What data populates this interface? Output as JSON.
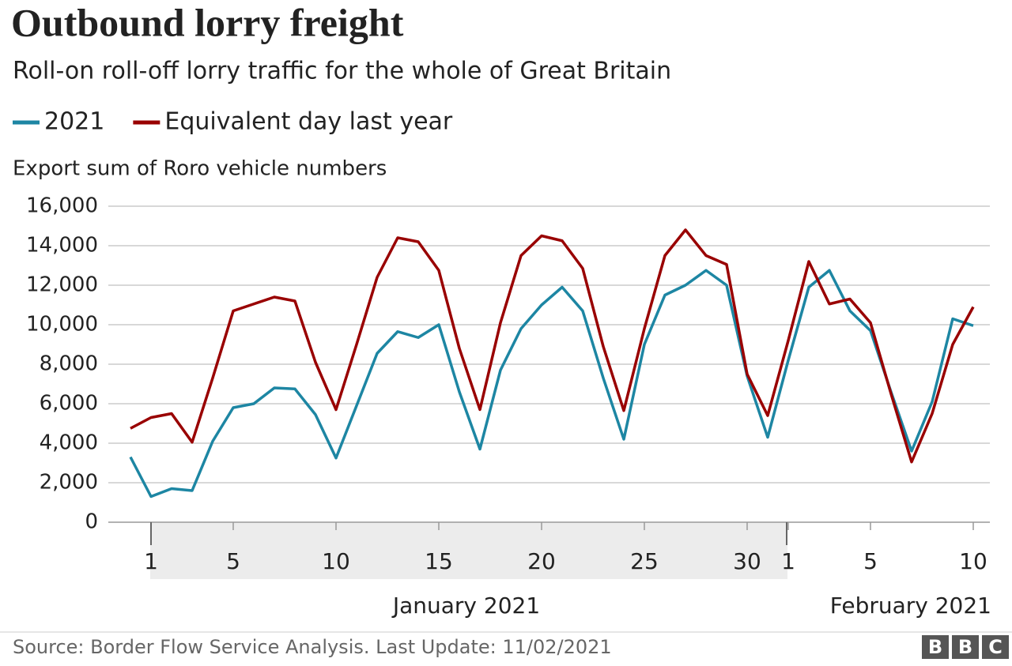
{
  "chart_data": {
    "type": "line",
    "title": "Outbound lorry freight",
    "subtitle": "Roll-on roll-off lorry traffic for the whole of Great Britain",
    "y_label": "Export sum of Roro vehicle numbers",
    "categories": [
      null,
      "1",
      null,
      null,
      null,
      "5",
      null,
      null,
      null,
      null,
      "10",
      null,
      null,
      null,
      null,
      "15",
      null,
      null,
      null,
      null,
      "20",
      null,
      null,
      null,
      null,
      "25",
      null,
      null,
      null,
      null,
      "30",
      null,
      "1",
      null,
      null,
      null,
      "5",
      null,
      null,
      null,
      null,
      "10"
    ],
    "months": [
      "January 2021",
      "February 2021"
    ],
    "series": [
      {
        "name": "2021",
        "color": "#1d86a3",
        "values": [
          3300,
          1300,
          1700,
          1600,
          4100,
          5800,
          6000,
          6800,
          6750,
          5450,
          3250,
          5900,
          8550,
          9650,
          9350,
          10000,
          6600,
          3700,
          7700,
          9800,
          11000,
          11900,
          10700,
          7300,
          4200,
          9000,
          11500,
          12000,
          12750,
          12000,
          7400,
          4300,
          8200,
          11900,
          12750,
          10700,
          9700,
          6600,
          3600,
          6100,
          10300,
          9950
        ]
      },
      {
        "name": "Equivalent day last year",
        "color": "#990000",
        "values": [
          4750,
          5300,
          5500,
          4050,
          7300,
          10700,
          11050,
          11400,
          11200,
          8100,
          5700,
          9000,
          12400,
          14400,
          14200,
          12750,
          8800,
          5700,
          10100,
          13500,
          14500,
          14250,
          12850,
          8900,
          5650,
          9800,
          13500,
          14800,
          13500,
          13050,
          7500,
          5400,
          9200,
          13200,
          11050,
          11300,
          10100,
          6500,
          3050,
          5500,
          9000,
          10900
        ]
      }
    ],
    "ylim": [
      0,
      16000
    ],
    "yticks": [
      0,
      {
        "value": 2000,
        "label": "2,000"
      },
      {
        "value": 4000,
        "label": "4,000"
      },
      {
        "value": 6000,
        "label": "6,000"
      },
      {
        "value": 8000,
        "label": "8,000"
      },
      {
        "value": 10000,
        "label": "10,000"
      },
      {
        "value": 12000,
        "label": "12,000"
      },
      {
        "value": 14000,
        "label": "14,000"
      },
      {
        "value": 16000,
        "label": "16,000"
      }
    ],
    "grid": true,
    "source": "Source: Border Flow Service Analysis. Last Update: 11/02/2021",
    "logo": [
      "B",
      "B",
      "C"
    ]
  }
}
